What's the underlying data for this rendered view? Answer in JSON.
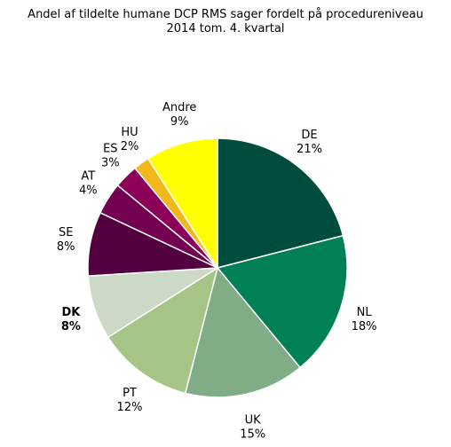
{
  "chart_data": {
    "type": "pie",
    "title_line1": "Andel af tildelte humane DCP RMS sager fordelt på procedureniveau",
    "title_line2": "2014 tom. 4. kvartal",
    "slices": [
      {
        "label": "DE",
        "value": 21,
        "pct_label": "21%",
        "color": "#004d3d",
        "bold": false
      },
      {
        "label": "NL",
        "value": 18,
        "pct_label": "18%",
        "color": "#008055",
        "bold": false
      },
      {
        "label": "UK",
        "value": 15,
        "pct_label": "15%",
        "color": "#80ad86",
        "bold": false
      },
      {
        "label": "PT",
        "value": 12,
        "pct_label": "12%",
        "color": "#a5c485",
        "bold": false
      },
      {
        "label": "DK",
        "value": 8,
        "pct_label": "8%",
        "color": "#ccd9c6",
        "bold": true
      },
      {
        "label": "SE",
        "value": 8,
        "pct_label": "8%",
        "color": "#520040",
        "bold": false
      },
      {
        "label": "AT",
        "value": 4,
        "pct_label": "4%",
        "color": "#730050",
        "bold": false
      },
      {
        "label": "ES",
        "value": 3,
        "pct_label": "3%",
        "color": "#8c005a",
        "bold": false
      },
      {
        "label": "HU",
        "value": 2,
        "pct_label": "2%",
        "color": "#f2b71a",
        "bold": false
      },
      {
        "label": "Andre",
        "value": 9,
        "pct_label": "9%",
        "color": "#ffff00",
        "bold": false
      }
    ]
  }
}
